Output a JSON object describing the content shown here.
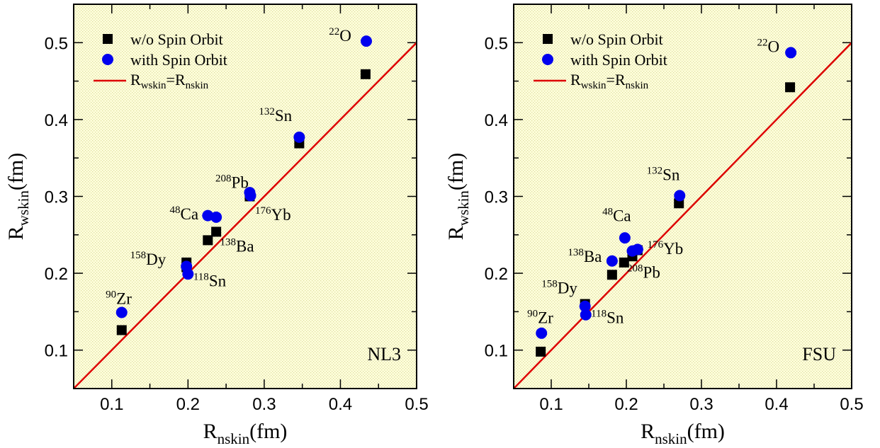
{
  "chart_data": [
    {
      "type": "scatter",
      "xlabel": {
        "main": "R",
        "sub": "nskin",
        "unit": "(fm)"
      },
      "ylabel": {
        "main": "R",
        "sub": "wskin",
        "unit": "(fm)"
      },
      "xlim": [
        0.05,
        0.5
      ],
      "ylim": [
        0.05,
        0.55
      ],
      "xticks": [
        0.1,
        0.2,
        0.3,
        0.4,
        0.5
      ],
      "xtick_labels": [
        "0.1",
        "0.2",
        "0.3",
        "0.4",
        "0.5"
      ],
      "yticks": [
        0.1,
        0.2,
        0.3,
        0.4,
        0.5
      ],
      "ytick_labels": [
        "0.1",
        "0.2",
        "0.3",
        "0.4",
        "0.5"
      ],
      "model_label": "NL3",
      "legend": {
        "placement": "top-left",
        "wo_label": "w/o Spin Orbit",
        "with_label": "with Spin Orbit",
        "line_main": "R",
        "line_sub1": "wskin",
        "line_eq": "=R",
        "line_sub2": "nskin"
      },
      "series": [
        {
          "name": "w/o Spin Orbit",
          "marker": "square",
          "color": "#000000",
          "x": [
            0.113,
            0.198,
            0.198,
            0.226,
            0.237,
            0.281,
            0.281,
            0.346,
            0.433
          ],
          "y": [
            0.126,
            0.214,
            0.208,
            0.243,
            0.254,
            0.302,
            0.3,
            0.369,
            0.459
          ]
        },
        {
          "name": "with Spin Orbit",
          "marker": "circle",
          "color": "#0000ee",
          "x": [
            0.113,
            0.198,
            0.2,
            0.226,
            0.237,
            0.281,
            0.282,
            0.346,
            0.434
          ],
          "y": [
            0.149,
            0.209,
            0.199,
            0.275,
            0.273,
            0.305,
            0.301,
            0.377,
            0.502
          ]
        },
        {
          "name": "Rwskin=Rnskin",
          "marker": "line",
          "color": "#dd0000",
          "x": [
            0.05,
            0.5
          ],
          "y": [
            0.05,
            0.5
          ]
        }
      ],
      "annotations": [
        {
          "sup": "22",
          "name": "O",
          "x": 0.385,
          "y": 0.502
        },
        {
          "sup": "132",
          "name": "Sn",
          "x": 0.293,
          "y": 0.398
        },
        {
          "sup": "208",
          "name": "Pb",
          "x": 0.236,
          "y": 0.311
        },
        {
          "sup": "176",
          "name": "Yb",
          "x": 0.288,
          "y": 0.269
        },
        {
          "sup": "48",
          "name": "Ca",
          "x": 0.176,
          "y": 0.27
        },
        {
          "sup": "138",
          "name": "Ba",
          "x": 0.242,
          "y": 0.228
        },
        {
          "sup": "158",
          "name": "Dy",
          "x": 0.124,
          "y": 0.211
        },
        {
          "sup": "118",
          "name": "Sn",
          "x": 0.207,
          "y": 0.183
        },
        {
          "sup": "90",
          "name": "Zr",
          "x": 0.092,
          "y": 0.16
        }
      ]
    },
    {
      "type": "scatter",
      "xlabel": {
        "main": "R",
        "sub": "nskin",
        "unit": "(fm)"
      },
      "ylabel": {
        "main": "R",
        "sub": "wskin",
        "unit": "(fm)"
      },
      "xlim": [
        0.05,
        0.5
      ],
      "ylim": [
        0.05,
        0.55
      ],
      "xticks": [
        0.1,
        0.2,
        0.3,
        0.4,
        0.5
      ],
      "xtick_labels": [
        "0.1",
        "0.2",
        "0.3",
        "0.4",
        "0.5"
      ],
      "yticks": [
        0.1,
        0.2,
        0.3,
        0.4,
        0.5
      ],
      "ytick_labels": [
        "0.1",
        "0.2",
        "0.3",
        "0.4",
        "0.5"
      ],
      "model_label": "FSU",
      "legend": {
        "placement": "top-left",
        "wo_label": "w/o Spin Orbit",
        "with_label": "with Spin Orbit",
        "line_main": "R",
        "line_sub1": "wskin",
        "line_eq": "=R",
        "line_sub2": "nskin"
      },
      "series": [
        {
          "name": "w/o Spin Orbit",
          "marker": "square",
          "color": "#000000",
          "x": [
            0.086,
            0.145,
            0.181,
            0.197,
            0.208,
            0.215,
            0.27,
            0.418
          ],
          "y": [
            0.098,
            0.16,
            0.198,
            0.214,
            0.222,
            0.23,
            0.291,
            0.442
          ]
        },
        {
          "name": "with Spin Orbit",
          "marker": "circle",
          "color": "#0000ee",
          "x": [
            0.087,
            0.145,
            0.146,
            0.181,
            0.198,
            0.208,
            0.215,
            0.271,
            0.419
          ],
          "y": [
            0.122,
            0.157,
            0.146,
            0.216,
            0.246,
            0.229,
            0.231,
            0.301,
            0.487
          ]
        },
        {
          "name": "Rwskin=Rnskin",
          "marker": "line",
          "color": "#dd0000",
          "x": [
            0.05,
            0.5
          ],
          "y": [
            0.05,
            0.5
          ]
        }
      ],
      "annotations": [
        {
          "sup": "22",
          "name": "O",
          "x": 0.374,
          "y": 0.488
        },
        {
          "sup": "132",
          "name": "Sn",
          "x": 0.227,
          "y": 0.321
        },
        {
          "sup": "48",
          "name": "Ca",
          "x": 0.168,
          "y": 0.268
        },
        {
          "sup": "138",
          "name": "Ba",
          "x": 0.122,
          "y": 0.215
        },
        {
          "sup": "176",
          "name": "Yb",
          "x": 0.228,
          "y": 0.225
        },
        {
          "sup": "208",
          "name": "Pb",
          "x": 0.201,
          "y": 0.194
        },
        {
          "sup": "158",
          "name": "Dy",
          "x": 0.087,
          "y": 0.174
        },
        {
          "sup": "118",
          "name": "Sn",
          "x": 0.153,
          "y": 0.135
        },
        {
          "sup": "90",
          "name": "Zr",
          "x": 0.068,
          "y": 0.135
        }
      ]
    }
  ]
}
